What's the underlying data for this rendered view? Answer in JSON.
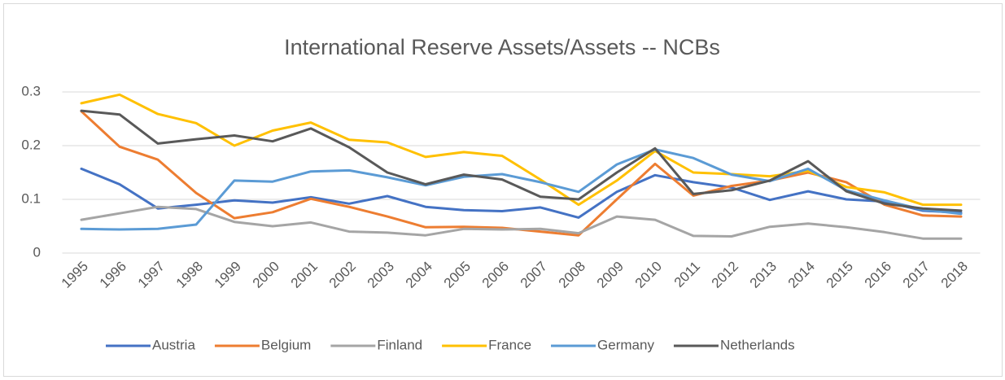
{
  "chart_data": {
    "type": "line",
    "title": "International Reserve Assets/Assets -- NCBs",
    "categories": [
      "1995",
      "1996",
      "1997",
      "1998",
      "1999",
      "2000",
      "2001",
      "2002",
      "2003",
      "2004",
      "2005",
      "2006",
      "2007",
      "2008",
      "2009",
      "2010",
      "2011",
      "2012",
      "2013",
      "2014",
      "2015",
      "2016",
      "2017",
      "2018"
    ],
    "series": [
      {
        "name": "Austria",
        "color": "#4472c4",
        "values": [
          0.157,
          0.128,
          0.083,
          0.09,
          0.098,
          0.094,
          0.104,
          0.092,
          0.106,
          0.086,
          0.08,
          0.078,
          0.085,
          0.066,
          0.114,
          0.145,
          0.132,
          0.122,
          0.099,
          0.115,
          0.1,
          0.096,
          0.079,
          0.075
        ]
      },
      {
        "name": "Belgium",
        "color": "#ed7d31",
        "values": [
          0.264,
          0.198,
          0.174,
          0.112,
          0.065,
          0.076,
          0.101,
          0.086,
          0.068,
          0.048,
          0.049,
          0.047,
          0.04,
          0.033,
          0.1,
          0.166,
          0.107,
          0.125,
          0.135,
          0.15,
          0.132,
          0.09,
          0.07,
          0.068
        ]
      },
      {
        "name": "Finland",
        "color": "#a5a5a5",
        "values": [
          0.062,
          0.074,
          0.086,
          0.082,
          0.058,
          0.05,
          0.057,
          0.04,
          0.038,
          0.033,
          0.045,
          0.044,
          0.045,
          0.037,
          0.068,
          0.062,
          0.032,
          0.031,
          0.049,
          0.055,
          0.048,
          0.039,
          0.027,
          0.027
        ]
      },
      {
        "name": "France",
        "color": "#ffc000",
        "values": [
          0.279,
          0.295,
          0.259,
          0.242,
          0.2,
          0.228,
          0.243,
          0.211,
          0.206,
          0.179,
          0.188,
          0.181,
          0.137,
          0.09,
          0.135,
          0.19,
          0.15,
          0.147,
          0.143,
          0.153,
          0.123,
          0.113,
          0.09,
          0.09
        ]
      },
      {
        "name": "Germany",
        "color": "#5b9bd5",
        "values": [
          0.045,
          0.044,
          0.045,
          0.053,
          0.135,
          0.133,
          0.152,
          0.154,
          0.141,
          0.126,
          0.142,
          0.147,
          0.132,
          0.114,
          0.165,
          0.193,
          0.177,
          0.146,
          0.134,
          0.157,
          0.117,
          0.098,
          0.081,
          0.073
        ]
      },
      {
        "name": "Netherlands",
        "color": "#595959",
        "values": [
          0.265,
          0.258,
          0.204,
          0.212,
          0.219,
          0.208,
          0.232,
          0.197,
          0.15,
          0.128,
          0.146,
          0.137,
          0.105,
          0.1,
          0.15,
          0.195,
          0.11,
          0.117,
          0.135,
          0.171,
          0.115,
          0.092,
          0.083,
          0.079
        ]
      }
    ],
    "ylim": [
      0,
      0.3
    ],
    "yticks": [
      0,
      0.1,
      0.2,
      0.3
    ],
    "grid": true,
    "legend": "bottom"
  }
}
